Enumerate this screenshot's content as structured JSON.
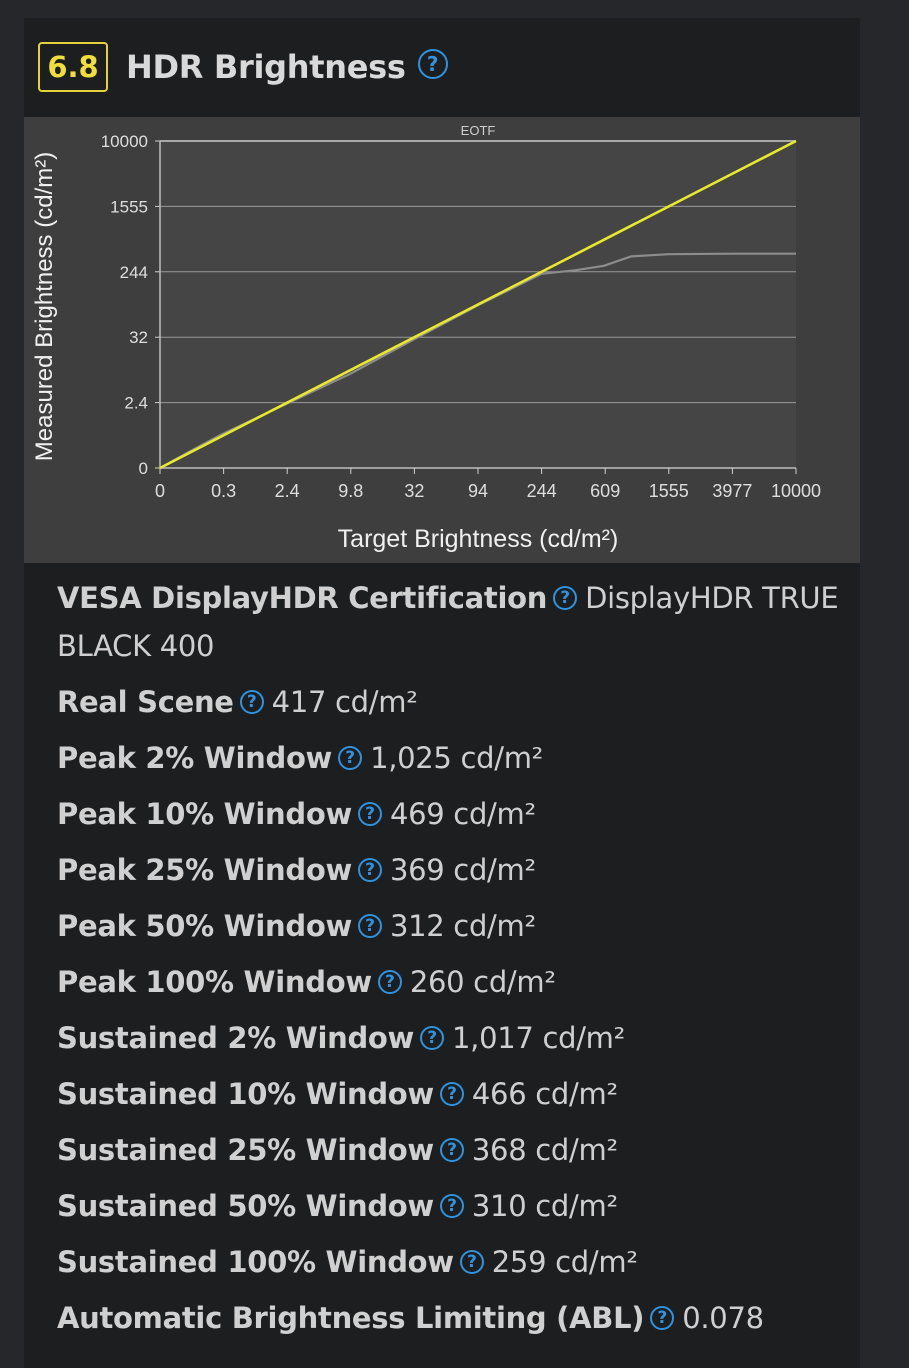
{
  "section": {
    "score": "6.8",
    "title": "HDR Brightness",
    "help_glyph": "?",
    "help_icon": "question-circle-icon",
    "accent_color": "#e4d23a",
    "help_color": "#2f93e0"
  },
  "chart_data": {
    "type": "line",
    "title": "EOTF",
    "xlabel": "Target Brightness (cd/m²)",
    "ylabel": "Measured Brightness (cd/m²)",
    "x_ticks": [
      "0",
      "0.3",
      "2.4",
      "9.8",
      "32",
      "94",
      "244",
      "609",
      "1555",
      "3977",
      "10000"
    ],
    "y_ticks": [
      "0",
      "2.4",
      "32",
      "244",
      "1555",
      "10000"
    ],
    "scale": "PQ",
    "grid": true,
    "series": [
      {
        "color": "#e8e82c",
        "x": [
          0,
          10000
        ],
        "y": [
          0,
          10000
        ]
      },
      {
        "color": "#8c8c8c",
        "x": [
          0,
          0.05,
          0.3,
          2.4,
          9.8,
          32,
          94,
          244,
          400,
          609,
          900,
          1555,
          3977,
          10000
        ],
        "y": [
          0,
          0.06,
          0.35,
          2.3,
          8.5,
          30,
          92,
          230,
          255,
          290,
          380,
          405,
          410,
          410
        ]
      }
    ]
  },
  "specs": [
    {
      "label": "VESA DisplayHDR Certification",
      "value": "DisplayHDR TRUE BLACK 400"
    },
    {
      "label": "Real Scene",
      "value": "417 cd/m²"
    },
    {
      "label": "Peak 2% Window",
      "value": "1,025 cd/m²"
    },
    {
      "label": "Peak 10% Window",
      "value": "469 cd/m²"
    },
    {
      "label": "Peak 25% Window",
      "value": "369 cd/m²"
    },
    {
      "label": "Peak 50% Window",
      "value": "312 cd/m²"
    },
    {
      "label": "Peak 100% Window",
      "value": "260 cd/m²"
    },
    {
      "label": "Sustained 2% Window",
      "value": "1,017 cd/m²"
    },
    {
      "label": "Sustained 10% Window",
      "value": "466 cd/m²"
    },
    {
      "label": "Sustained 25% Window",
      "value": "368 cd/m²"
    },
    {
      "label": "Sustained 50% Window",
      "value": "310 cd/m²"
    },
    {
      "label": "Sustained 100% Window",
      "value": "259 cd/m²"
    },
    {
      "label": "Automatic Brightness Limiting (ABL)",
      "value": "0.078"
    }
  ]
}
